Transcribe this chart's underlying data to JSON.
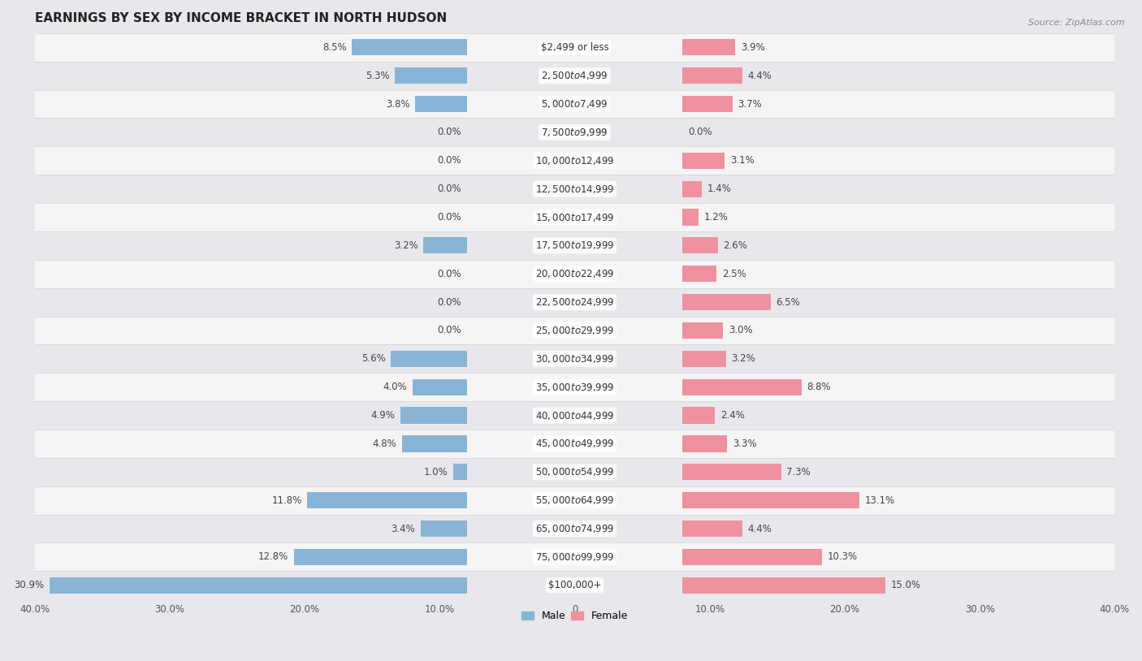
{
  "title": "EARNINGS BY SEX BY INCOME BRACKET IN NORTH HUDSON",
  "source": "Source: ZipAtlas.com",
  "categories": [
    "$2,499 or less",
    "$2,500 to $4,999",
    "$5,000 to $7,499",
    "$7,500 to $9,999",
    "$10,000 to $12,499",
    "$12,500 to $14,999",
    "$15,000 to $17,499",
    "$17,500 to $19,999",
    "$20,000 to $22,499",
    "$22,500 to $24,999",
    "$25,000 to $29,999",
    "$30,000 to $34,999",
    "$35,000 to $39,999",
    "$40,000 to $44,999",
    "$45,000 to $49,999",
    "$50,000 to $54,999",
    "$55,000 to $64,999",
    "$65,000 to $74,999",
    "$75,000 to $99,999",
    "$100,000+"
  ],
  "male_values": [
    8.5,
    5.3,
    3.8,
    0.0,
    0.0,
    0.0,
    0.0,
    3.2,
    0.0,
    0.0,
    0.0,
    5.6,
    4.0,
    4.9,
    4.8,
    1.0,
    11.8,
    3.4,
    12.8,
    30.9
  ],
  "female_values": [
    3.9,
    4.4,
    3.7,
    0.0,
    3.1,
    1.4,
    1.2,
    2.6,
    2.5,
    6.5,
    3.0,
    3.2,
    8.8,
    2.4,
    3.3,
    7.3,
    13.1,
    4.4,
    10.3,
    15.0
  ],
  "male_color": "#8ab4d5",
  "female_color": "#f0919f",
  "row_colors": [
    "#f5f5f5",
    "#e8e8ec"
  ],
  "background_color": "#e8e8ec",
  "xlim": 40.0,
  "title_fontsize": 11,
  "value_fontsize": 8.5,
  "category_fontsize": 8.5,
  "xtick_fontsize": 8.5,
  "bar_height": 0.58,
  "legend_labels": [
    "Male",
    "Female"
  ],
  "xtick_labels": [
    "40.0%",
    "30.0%",
    "20.0%",
    "10.0%",
    "0",
    "10.0%",
    "20.0%",
    "30.0%",
    "40.0%"
  ],
  "xtick_positions": [
    -40,
    -30,
    -20,
    -10,
    0,
    10,
    20,
    30,
    40
  ]
}
